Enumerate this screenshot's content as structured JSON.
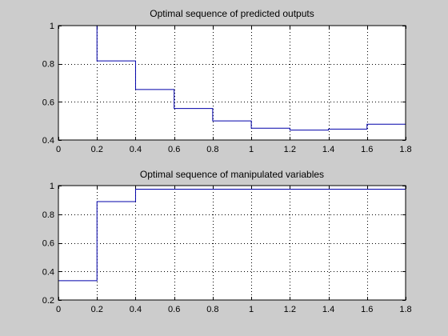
{
  "colors": {
    "figure_background": "#cccccc",
    "axes_background": "#ffffff",
    "series_line": "#0000aa",
    "grid": "#000000"
  },
  "chart_data": [
    {
      "type": "line",
      "style": "stairs",
      "title": "Optimal sequence of predicted outputs",
      "xlabel": "",
      "ylabel": "",
      "xlim": [
        0,
        1.8
      ],
      "ylim": [
        0.4,
        1
      ],
      "xticks": [
        "0",
        "0.2",
        "0.4",
        "0.6",
        "0.8",
        "1",
        "1.2",
        "1.4",
        "1.6",
        "1.8"
      ],
      "xtick_values": [
        0,
        0.2,
        0.4,
        0.6,
        0.8,
        1,
        1.2,
        1.4,
        1.6,
        1.8
      ],
      "yticks": [
        "0.4",
        "0.6",
        "0.8",
        "1"
      ],
      "ytick_values": [
        0.4,
        0.6,
        0.8,
        1
      ],
      "grid": "dotted",
      "series": [
        {
          "x": [
            0.2,
            0.4,
            0.6,
            0.8,
            1.0,
            1.2,
            1.4,
            1.6
          ],
          "y": [
            0.815,
            0.665,
            0.565,
            0.5,
            0.462,
            0.452,
            0.457,
            0.483
          ],
          "start_y": 1.05
        }
      ]
    },
    {
      "type": "line",
      "style": "stairs",
      "title": "Optimal sequence of manipulated variables",
      "xlabel": "",
      "ylabel": "",
      "xlim": [
        0,
        1.8
      ],
      "ylim": [
        0.2,
        1
      ],
      "xticks": [
        "0",
        "0.2",
        "0.4",
        "0.6",
        "0.8",
        "1",
        "1.2",
        "1.4",
        "1.6",
        "1.8"
      ],
      "xtick_values": [
        0,
        0.2,
        0.4,
        0.6,
        0.8,
        1,
        1.2,
        1.4,
        1.6,
        1.8
      ],
      "yticks": [
        "0.2",
        "0.4",
        "0.6",
        "0.8",
        "1"
      ],
      "ytick_values": [
        0.2,
        0.4,
        0.6,
        0.8,
        1
      ],
      "grid": "dotted",
      "series": [
        {
          "x": [
            0,
            0.2,
            0.4
          ],
          "y": [
            0.335,
            0.888,
            0.975
          ]
        }
      ]
    }
  ]
}
